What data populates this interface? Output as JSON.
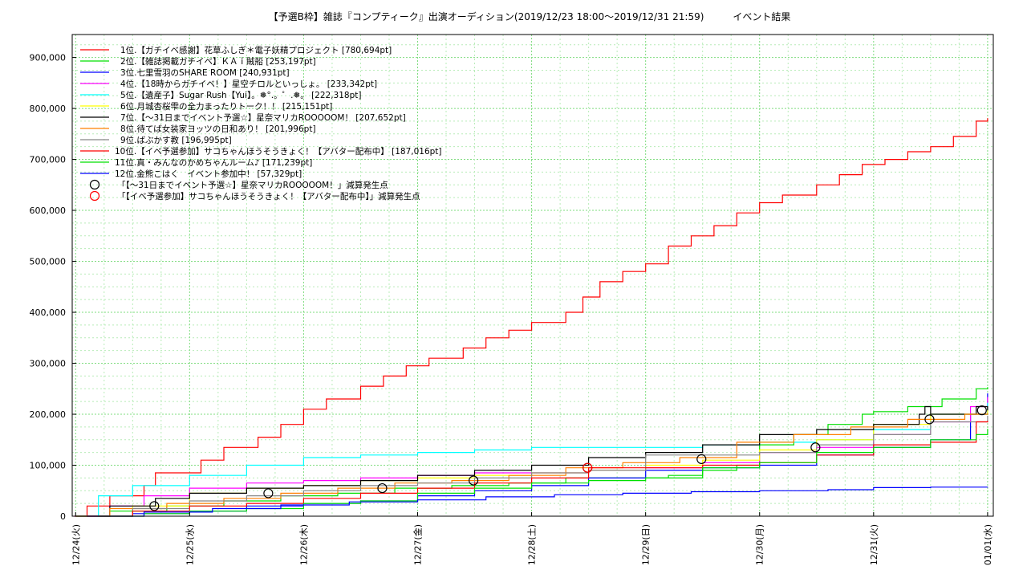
{
  "chart_data": {
    "type": "line",
    "title": "【予選B枠】雑誌『コンプティーク』出演オーディション(2019/12/23 18:00〜2019/12/31 21:59)　　　イベント結果",
    "xlabel": "",
    "ylabel": "",
    "x_tick_labels": [
      "12/24(火)",
      "12/25(水)",
      "12/26(木)",
      "12/27(金)",
      "12/28(土)",
      "12/29(日)",
      "12/30(月)",
      "12/31(火)",
      "01/01(水)"
    ],
    "y_tick_labels": [
      "0",
      "100,000",
      "200,000",
      "300,000",
      "400,000",
      "500,000",
      "600,000",
      "700,000",
      "800,000",
      "900,000"
    ],
    "xlim": [
      -0.03,
      8.05
    ],
    "ylim": [
      0,
      945000
    ],
    "grid": true,
    "legend_position": "top-left",
    "colors": [
      "#ff0000",
      "#00e000",
      "#0000ff",
      "#ff00ff",
      "#00ffff",
      "#ffff00",
      "#000000",
      "#ff8000",
      "#888888",
      "#ff0000",
      "#00e000",
      "#0000ff"
    ],
    "series": [
      {
        "name": "1位.【ガチイベ感謝】花草ふしぎ＊電子妖精プロジェクト [780,694pt]",
        "x": [
          -0.01,
          0.1,
          0.3,
          0.6,
          0.7,
          1.1,
          1.3,
          1.6,
          1.8,
          2.0,
          2.2,
          2.5,
          2.7,
          2.9,
          3.1,
          3.4,
          3.6,
          3.8,
          4.0,
          4.3,
          4.45,
          4.6,
          4.8,
          5.0,
          5.2,
          5.4,
          5.6,
          5.8,
          6.0,
          6.2,
          6.5,
          6.7,
          6.9,
          7.1,
          7.3,
          7.5,
          7.7,
          7.9,
          8.0
        ],
        "y": [
          0,
          20000,
          40000,
          60000,
          85000,
          110000,
          135000,
          155000,
          180000,
          210000,
          230000,
          255000,
          275000,
          295000,
          310000,
          330000,
          350000,
          365000,
          380000,
          400000,
          430000,
          460000,
          480000,
          495000,
          530000,
          550000,
          570000,
          595000,
          615000,
          630000,
          650000,
          670000,
          690000,
          700000,
          715000,
          725000,
          745000,
          775000,
          780694
        ]
      },
      {
        "name": "2位.【雑誌掲載ガチイベ】ＫＡｉ賊船 [253,197pt]",
        "x": [
          0.0,
          0.3,
          0.8,
          1.3,
          1.8,
          2.3,
          2.8,
          3.3,
          3.8,
          4.3,
          4.8,
          5.2,
          5.5,
          5.8,
          6.0,
          6.3,
          6.6,
          6.9,
          7.0,
          7.3,
          7.6,
          7.9,
          8.0
        ],
        "y": [
          0,
          10000,
          20000,
          30000,
          40000,
          45000,
          55000,
          60000,
          65000,
          75000,
          75000,
          80000,
          90000,
          100000,
          140000,
          160000,
          180000,
          200000,
          205000,
          215000,
          230000,
          250000,
          253197
        ]
      },
      {
        "name": "3位.七里雪羽のSHARE ROOM [240,931pt]",
        "x": [
          0.1,
          0.5,
          1.0,
          1.5,
          2.0,
          2.5,
          3.0,
          3.5,
          4.0,
          4.5,
          5.0,
          5.5,
          6.0,
          6.5,
          7.0,
          7.5,
          7.85,
          8.0
        ],
        "y": [
          0,
          5000,
          10000,
          20000,
          25000,
          30000,
          40000,
          50000,
          60000,
          75000,
          90000,
          95000,
          100000,
          120000,
          135000,
          150000,
          200000,
          240931
        ]
      },
      {
        "name": "4位.【18時からガチイベ！】星空チロルといっしょ。 [233,342pt]",
        "x": [
          -0.01,
          0.3,
          0.6,
          1.0,
          1.5,
          2.0,
          2.5,
          3.0,
          3.5,
          4.0,
          4.5,
          5.0,
          5.5,
          6.0,
          6.5,
          7.0,
          7.5,
          7.85,
          8.0
        ],
        "y": [
          0,
          20000,
          40000,
          55000,
          65000,
          70000,
          75000,
          80000,
          85000,
          85000,
          90000,
          95000,
          105000,
          125000,
          135000,
          160000,
          185000,
          215000,
          233342
        ]
      },
      {
        "name": "5位.【遺産子】Sugar Rush【Yui】。❅°.。゜.❅。 [222,318pt]",
        "x": [
          0.0,
          0.2,
          0.5,
          1.0,
          1.5,
          2.0,
          2.5,
          3.0,
          3.5,
          4.0,
          4.5,
          5.0,
          5.5,
          6.0,
          6.5,
          7.0,
          7.5,
          8.0
        ],
        "y": [
          0,
          40000,
          60000,
          80000,
          100000,
          115000,
          120000,
          125000,
          130000,
          135000,
          135000,
          135000,
          140000,
          145000,
          150000,
          170000,
          200000,
          222318
        ]
      },
      {
        "name": "6位.月城杏桜雫の全力まったりトーク！！ [215,151pt]",
        "x": [
          0.0,
          0.5,
          1.0,
          1.5,
          2.0,
          2.5,
          3.0,
          3.5,
          4.0,
          4.5,
          5.0,
          5.5,
          6.0,
          6.5,
          7.0,
          7.5,
          8.0
        ],
        "y": [
          0,
          20000,
          45000,
          55000,
          60000,
          70000,
          75000,
          80000,
          85000,
          90000,
          100000,
          110000,
          130000,
          150000,
          180000,
          200000,
          215151
        ]
      },
      {
        "name": "7位.【〜31日までイベント予選☆】星奈マリカROOOOOM！ [207,652pt]",
        "x": [
          0.0,
          0.3,
          0.7,
          1.0,
          1.5,
          2.0,
          2.5,
          3.0,
          3.5,
          4.0,
          4.5,
          5.0,
          5.5,
          6.0,
          6.5,
          7.0,
          7.4,
          7.45,
          7.5,
          7.9,
          8.0
        ],
        "y": [
          0,
          20000,
          35000,
          45000,
          55000,
          60000,
          70000,
          80000,
          90000,
          100000,
          115000,
          125000,
          140000,
          160000,
          170000,
          180000,
          200000,
          215000,
          200000,
          215000,
          207652
        ]
      },
      {
        "name": "8位.待てば女装家ヨッツの日和あり！ [201,996pt]",
        "x": [
          0.0,
          0.3,
          0.8,
          1.3,
          1.8,
          2.3,
          2.8,
          3.3,
          3.8,
          4.3,
          4.8,
          5.3,
          5.8,
          6.3,
          6.8,
          7.3,
          7.8,
          8.0
        ],
        "y": [
          0,
          15000,
          25000,
          35000,
          45000,
          55000,
          65000,
          70000,
          80000,
          95000,
          105000,
          115000,
          145000,
          160000,
          175000,
          190000,
          200000,
          201996
        ]
      },
      {
        "name": "9位.ばぶかす教 [196,995pt]",
        "x": [
          0.0,
          0.5,
          1.0,
          1.5,
          2.0,
          2.5,
          3.0,
          3.5,
          4.0,
          4.5,
          5.0,
          5.5,
          6.0,
          6.5,
          7.0,
          7.5,
          8.0
        ],
        "y": [
          0,
          15000,
          30000,
          40000,
          50000,
          60000,
          65000,
          75000,
          85000,
          90000,
          120000,
          120000,
          125000,
          140000,
          160000,
          185000,
          196995
        ]
      },
      {
        "name": "10位.【イベ予選参加】サコちゃんほうそうきょく！【アバター配布中】 [187,016pt]",
        "x": [
          0.1,
          0.5,
          1.0,
          1.5,
          2.0,
          2.5,
          3.0,
          3.5,
          4.0,
          4.5,
          5.0,
          5.5,
          6.0,
          6.5,
          7.0,
          7.5,
          7.9,
          8.0
        ],
        "y": [
          0,
          10000,
          20000,
          25000,
          35000,
          45000,
          55000,
          65000,
          75000,
          95000,
          95000,
          100000,
          105000,
          120000,
          140000,
          145000,
          185000,
          187016
        ]
      },
      {
        "name": "11位.真・みんなのかめちゃんルーム♪ [171,239pt]",
        "x": [
          0.2,
          0.6,
          1.0,
          1.5,
          2.0,
          2.5,
          3.0,
          3.5,
          4.0,
          4.5,
          5.0,
          5.5,
          6.0,
          6.5,
          7.0,
          7.5,
          7.9,
          8.0
        ],
        "y": [
          0,
          5000,
          10000,
          15000,
          25000,
          30000,
          45000,
          55000,
          65000,
          70000,
          75000,
          95000,
          105000,
          125000,
          135000,
          150000,
          160000,
          171239
        ]
      },
      {
        "name": "12位.金熊こはく　イベント参加中！ [57,329pt]",
        "x": [
          0.1,
          0.6,
          1.2,
          1.8,
          2.4,
          3.0,
          3.6,
          4.2,
          4.8,
          5.4,
          6.0,
          6.6,
          7.0,
          7.5,
          8.0
        ],
        "y": [
          0,
          8000,
          15000,
          22000,
          28000,
          32000,
          38000,
          42000,
          45000,
          48000,
          50000,
          52000,
          56000,
          57000,
          57329
        ]
      }
    ],
    "drop_marker_legend": [
      {
        "label": "「【〜31日までイベント予選☆】星奈マリカROOOOOM！」減算発生点",
        "color": "#000000"
      },
      {
        "label": "「【イベ予選参加】サコちゃんほうそうきょく！【アバター配布中】」減算発生点",
        "color": "#ff0000"
      }
    ],
    "drop_points": [
      {
        "series": 6,
        "x": 0.69,
        "y": 20000
      },
      {
        "series": 6,
        "x": 1.69,
        "y": 45000
      },
      {
        "series": 6,
        "x": 2.69,
        "y": 55000
      },
      {
        "series": 6,
        "x": 3.49,
        "y": 70000
      },
      {
        "series": 6,
        "x": 4.49,
        "y": 95000
      },
      {
        "series": 6,
        "x": 5.49,
        "y": 112000
      },
      {
        "series": 6,
        "x": 6.49,
        "y": 135000
      },
      {
        "series": 6,
        "x": 7.49,
        "y": 190000
      },
      {
        "series": 6,
        "x": 7.95,
        "y": 207652
      },
      {
        "series": 9,
        "x": 4.49,
        "y": 95000
      }
    ]
  }
}
